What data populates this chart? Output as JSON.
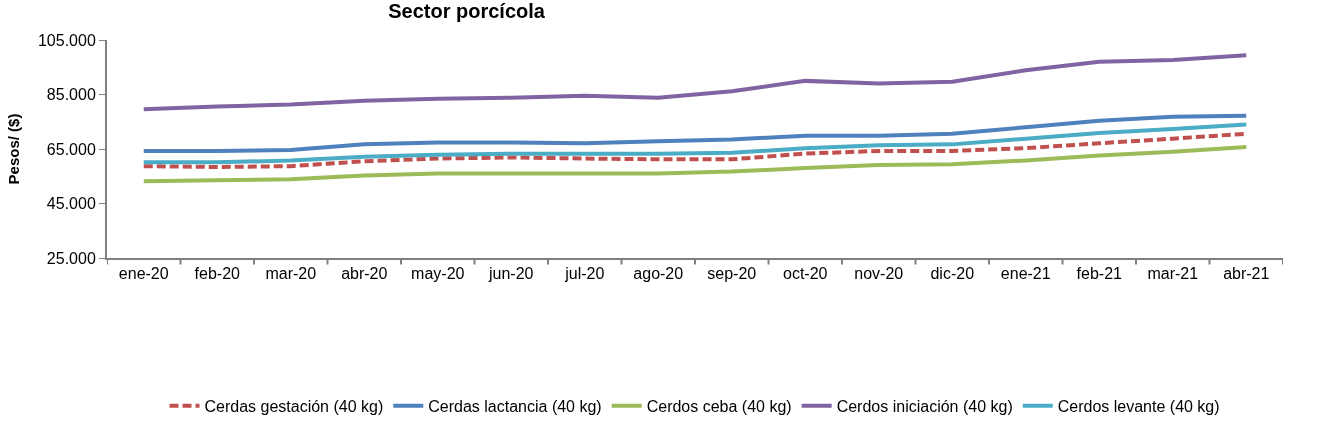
{
  "chart_data": {
    "type": "line",
    "title": "Sector porcícola",
    "ylabel": "Pesos/ ($)",
    "categories": [
      "ene-20",
      "feb-20",
      "mar-20",
      "abr-20",
      "may-20",
      "jun-20",
      "jul-20",
      "ago-20",
      "sep-20",
      "oct-20",
      "nov-20",
      "dic-20",
      "ene-21",
      "feb-21",
      "mar-21",
      "abr-21"
    ],
    "ylim": [
      25000,
      105000
    ],
    "yticks": [
      {
        "value": 25000,
        "label": "25.000"
      },
      {
        "value": 45000,
        "label": "45.000"
      },
      {
        "value": 65000,
        "label": "65.000"
      },
      {
        "value": 85000,
        "label": "85.000"
      },
      {
        "value": 105000,
        "label": "105.000"
      }
    ],
    "grid": false,
    "legend": "bottom",
    "marker": "none",
    "series": [
      {
        "name": "Cerdas gestación (40 kg)",
        "color": "#c0504d",
        "line_style": "dashed",
        "values": [
          58700,
          58400,
          58700,
          60500,
          61500,
          61900,
          61500,
          61200,
          61200,
          63300,
          64300,
          64300,
          65300,
          67100,
          68800,
          70600
        ]
      },
      {
        "name": "Cerdas lactancia (40 kg)",
        "color": "#4f81bd",
        "line_style": "solid",
        "values": [
          64300,
          64300,
          64600,
          66700,
          67400,
          67400,
          67100,
          67800,
          68500,
          69900,
          69900,
          70600,
          73000,
          75400,
          76800,
          77200
        ]
      },
      {
        "name": "Cerdos ceba (40 kg)",
        "color": "#9bbb59",
        "line_style": "solid",
        "values": [
          53200,
          53500,
          53900,
          55300,
          56000,
          56000,
          56000,
          56000,
          56700,
          58000,
          59100,
          59400,
          60800,
          62600,
          64000,
          65700
        ]
      },
      {
        "name": "Cerdos iniciación (40 kg)",
        "color": "#8064a2",
        "line_style": "solid",
        "values": [
          79600,
          80600,
          81300,
          82700,
          83400,
          83800,
          84500,
          83800,
          86200,
          90000,
          89000,
          89700,
          93900,
          97000,
          97700,
          99400
        ]
      },
      {
        "name": "Cerdos levante (40 kg)",
        "color": "#4bacc6",
        "line_style": "solid",
        "values": [
          60100,
          60100,
          60800,
          62200,
          62900,
          63300,
          63300,
          63300,
          63600,
          65300,
          66400,
          66700,
          68800,
          70900,
          72300,
          74000
        ]
      }
    ]
  }
}
